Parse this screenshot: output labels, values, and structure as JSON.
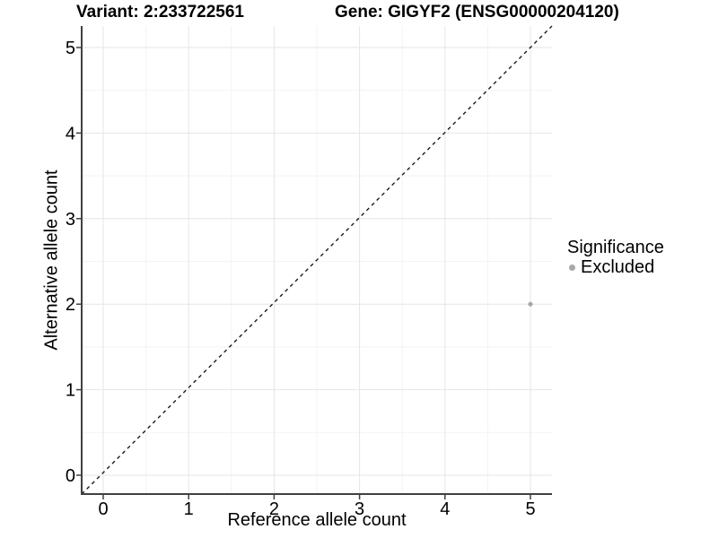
{
  "chart_data": {
    "type": "scatter",
    "title_left": "Variant: 2:233722561",
    "title_right": "Gene: GIGYF2 (ENSG00000204120)",
    "xlabel": "Reference allele count",
    "ylabel": "Alternative allele count",
    "xlim": [
      -0.25,
      5.25
    ],
    "ylim": [
      -0.25,
      5.25
    ],
    "xticks": [
      0,
      1,
      2,
      3,
      4,
      5
    ],
    "yticks": [
      0,
      1,
      2,
      3,
      4,
      5
    ],
    "grid": "major and minor gridlines, white background",
    "points": [
      {
        "x": 5,
        "y": 2,
        "series": "Excluded"
      }
    ],
    "identity_line": {
      "style": "dashed",
      "equation": "y = x",
      "from": -0.25,
      "to": 5.25
    },
    "legend": {
      "title": "Significance",
      "position": "right",
      "items": [
        {
          "label": "Excluded",
          "color": "#a8a8a8"
        }
      ]
    },
    "colors": {
      "point": "#a8a8a8",
      "grid_major": "#e6e6e6",
      "grid_minor": "#f3f3f3",
      "axis": "#404040",
      "identity_line": "#1a1a1a",
      "text": "#000000",
      "background": "#ffffff"
    }
  }
}
